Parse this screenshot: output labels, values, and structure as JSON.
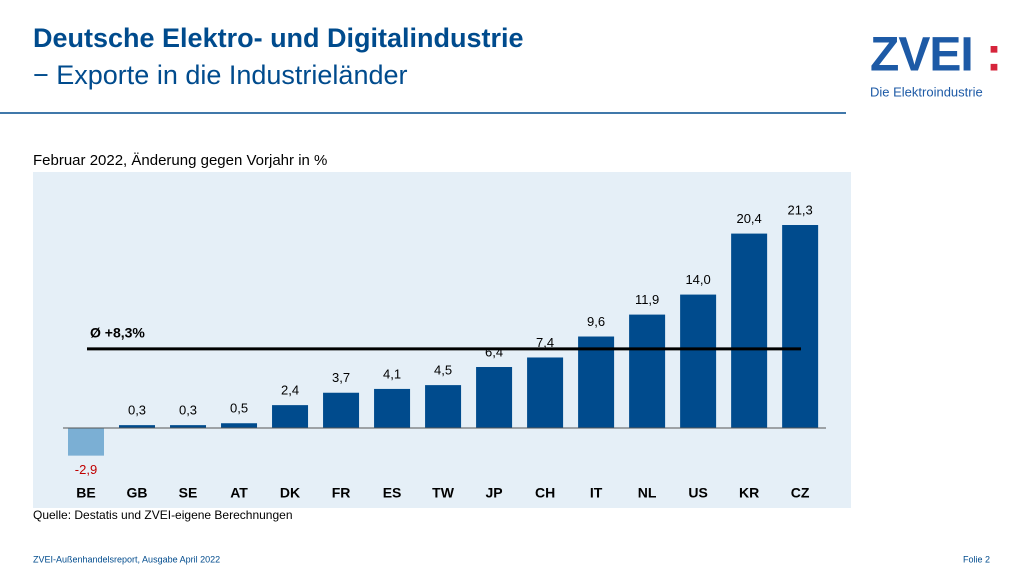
{
  "header": {
    "title": "Deutsche Elektro- und Digitalindustrie",
    "subtitle": "− Exporte in die Industrieländer"
  },
  "logo": {
    "name": "ZVEI",
    "mark": ":",
    "tagline": "Die Elektroindustrie"
  },
  "chart_data": {
    "type": "bar",
    "title": "Februar 2022, Änderung gegen Vorjahr in %",
    "categories": [
      "BE",
      "GB",
      "SE",
      "AT",
      "DK",
      "FR",
      "ES",
      "TW",
      "JP",
      "CH",
      "IT",
      "NL",
      "US",
      "KR",
      "CZ"
    ],
    "values": [
      -2.9,
      0.3,
      0.3,
      0.5,
      2.4,
      3.7,
      4.1,
      4.5,
      6.4,
      7.4,
      9.6,
      11.9,
      14.0,
      20.4,
      21.3
    ],
    "value_labels": [
      "-2,9",
      "0,3",
      "0,3",
      "0,5",
      "2,4",
      "3,7",
      "4,1",
      "4,5",
      "6,4",
      "7,4",
      "9,6",
      "11,9",
      "14,0",
      "20,4",
      "21,3"
    ],
    "color": "#004b8d",
    "negative_color": "#7bafd4",
    "negative_label_color": "#c00000",
    "average": {
      "value": 8.3,
      "label": "Ø +8,3%"
    },
    "source": "Quelle: Destatis und ZVEI-eigene Berechnungen"
  },
  "footer": {
    "left": "ZVEI-Außenhandelsreport, Ausgabe April 2022",
    "right": "Folie 2"
  }
}
